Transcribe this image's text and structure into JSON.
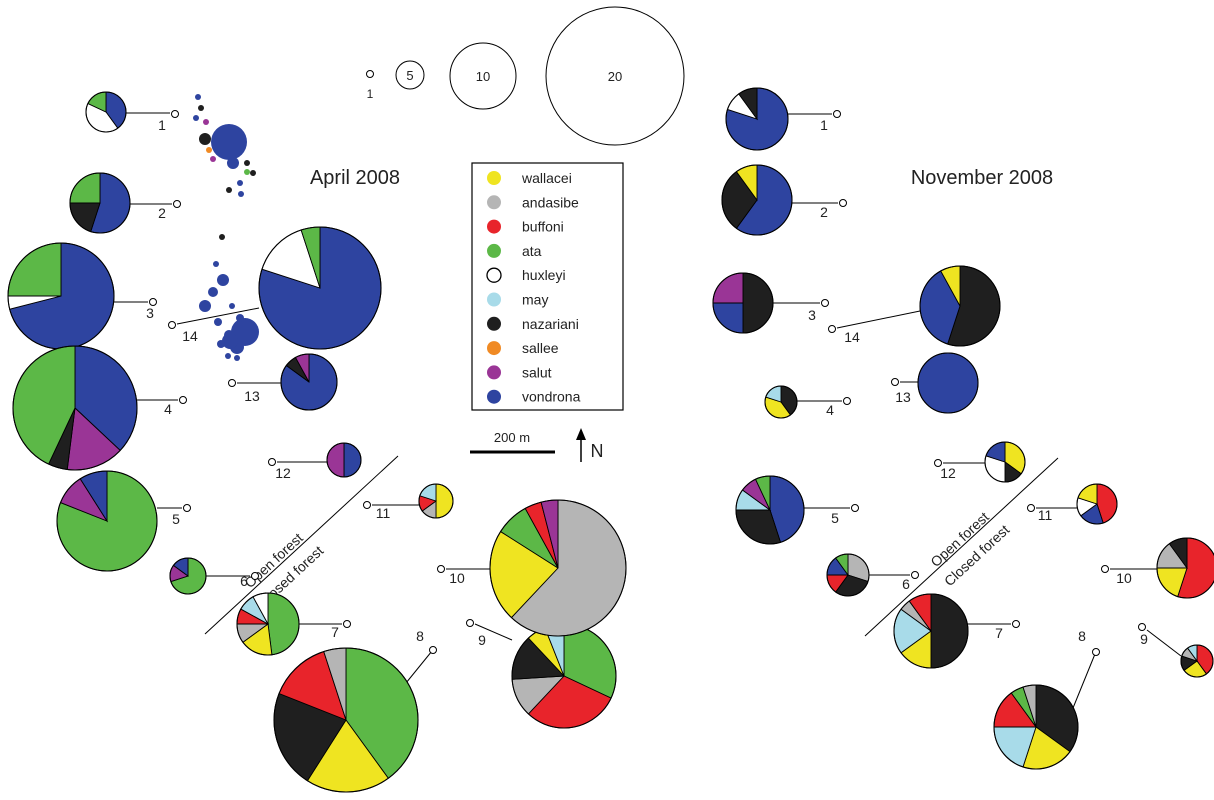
{
  "colors": {
    "wallacei": "#efe421",
    "andasibe": "#b5b5b5",
    "buffoni": "#e8242b",
    "ata": "#5cb847",
    "huxleyi": "#ffffff",
    "may": "#a8dbe9",
    "nazariani": "#1f1f1f",
    "sallee": "#f08a24",
    "salut": "#9a3596",
    "vondrona": "#2e44a0"
  },
  "legend": {
    "items": [
      {
        "key": "wallacei",
        "label": "wallacei"
      },
      {
        "key": "andasibe",
        "label": "andasibe"
      },
      {
        "key": "buffoni",
        "label": "buffoni"
      },
      {
        "key": "ata",
        "label": "ata"
      },
      {
        "key": "huxleyi",
        "label": "huxleyi"
      },
      {
        "key": "may",
        "label": "may"
      },
      {
        "key": "nazariani",
        "label": "nazariani"
      },
      {
        "key": "sallee",
        "label": "sallee"
      },
      {
        "key": "salut",
        "label": "salut"
      },
      {
        "key": "vondrona",
        "label": "vondrona"
      }
    ]
  },
  "size_scale": {
    "values": [
      1,
      5,
      10,
      20
    ]
  },
  "scale_bar": {
    "label": "200 m"
  },
  "north": {
    "label": "N"
  },
  "panels": [
    {
      "title": "April 2008",
      "forest": {
        "open": "Open forest",
        "closed": "Closed forest"
      },
      "sites": [
        {
          "id": "1",
          "comp": [
            {
              "s": "vondrona",
              "v": 40
            },
            {
              "s": "huxleyi",
              "v": 42
            },
            {
              "s": "ata",
              "v": 18
            }
          ]
        },
        {
          "id": "2",
          "comp": [
            {
              "s": "vondrona",
              "v": 55
            },
            {
              "s": "nazariani",
              "v": 20
            },
            {
              "s": "ata",
              "v": 25
            }
          ]
        },
        {
          "id": "3",
          "comp": [
            {
              "s": "vondrona",
              "v": 71
            },
            {
              "s": "huxleyi",
              "v": 4
            },
            {
              "s": "ata",
              "v": 25
            }
          ]
        },
        {
          "id": "4",
          "comp": [
            {
              "s": "vondrona",
              "v": 37
            },
            {
              "s": "salut",
              "v": 15
            },
            {
              "s": "nazariani",
              "v": 5
            },
            {
              "s": "ata",
              "v": 43
            }
          ]
        },
        {
          "id": "5",
          "comp": [
            {
              "s": "ata",
              "v": 81
            },
            {
              "s": "salut",
              "v": 10
            },
            {
              "s": "vondrona",
              "v": 9
            }
          ]
        },
        {
          "id": "6",
          "comp": [
            {
              "s": "ata",
              "v": 70
            },
            {
              "s": "salut",
              "v": 15
            },
            {
              "s": "vondrona",
              "v": 15
            }
          ]
        },
        {
          "id": "7",
          "comp": [
            {
              "s": "ata",
              "v": 48
            },
            {
              "s": "wallacei",
              "v": 17
            },
            {
              "s": "andasibe",
              "v": 10
            },
            {
              "s": "buffoni",
              "v": 8
            },
            {
              "s": "may",
              "v": 9
            },
            {
              "s": "huxleyi",
              "v": 8
            }
          ]
        },
        {
          "id": "8",
          "comp": [
            {
              "s": "ata",
              "v": 40
            },
            {
              "s": "wallacei",
              "v": 19
            },
            {
              "s": "nazariani",
              "v": 22
            },
            {
              "s": "buffoni",
              "v": 14
            },
            {
              "s": "andasibe",
              "v": 5
            }
          ]
        },
        {
          "id": "9",
          "comp": [
            {
              "s": "ata",
              "v": 32
            },
            {
              "s": "buffoni",
              "v": 30
            },
            {
              "s": "andasibe",
              "v": 12
            },
            {
              "s": "nazariani",
              "v": 14
            },
            {
              "s": "wallacei",
              "v": 6
            },
            {
              "s": "may",
              "v": 6
            }
          ]
        },
        {
          "id": "10",
          "comp": [
            {
              "s": "andasibe",
              "v": 62
            },
            {
              "s": "wallacei",
              "v": 22
            },
            {
              "s": "ata",
              "v": 8
            },
            {
              "s": "buffoni",
              "v": 4
            },
            {
              "s": "salut",
              "v": 4
            }
          ]
        },
        {
          "id": "11",
          "comp": [
            {
              "s": "wallacei",
              "v": 50
            },
            {
              "s": "andasibe",
              "v": 15
            },
            {
              "s": "buffoni",
              "v": 15
            },
            {
              "s": "may",
              "v": 20
            }
          ]
        },
        {
          "id": "12",
          "comp": [
            {
              "s": "vondrona",
              "v": 50
            },
            {
              "s": "salut",
              "v": 50
            }
          ]
        },
        {
          "id": "13",
          "comp": [
            {
              "s": "vondrona",
              "v": 85
            },
            {
              "s": "nazariani",
              "v": 7
            },
            {
              "s": "salut",
              "v": 8
            }
          ]
        },
        {
          "id": "14",
          "comp": [
            {
              "s": "vondrona",
              "v": 80
            },
            {
              "s": "huxleyi",
              "v": 15
            },
            {
              "s": "ata",
              "v": 5
            }
          ]
        }
      ]
    },
    {
      "title": "November 2008",
      "forest": {
        "open": "Open forest",
        "closed": "Closed forest"
      },
      "sites": [
        {
          "id": "1",
          "comp": [
            {
              "s": "vondrona",
              "v": 80
            },
            {
              "s": "huxleyi",
              "v": 10
            },
            {
              "s": "nazariani",
              "v": 10
            }
          ]
        },
        {
          "id": "2",
          "comp": [
            {
              "s": "vondrona",
              "v": 60
            },
            {
              "s": "nazariani",
              "v": 30
            },
            {
              "s": "wallacei",
              "v": 10
            }
          ]
        },
        {
          "id": "3",
          "comp": [
            {
              "s": "nazariani",
              "v": 50
            },
            {
              "s": "vondrona",
              "v": 25
            },
            {
              "s": "salut",
              "v": 25
            }
          ]
        },
        {
          "id": "4",
          "comp": [
            {
              "s": "nazariani",
              "v": 40
            },
            {
              "s": "wallacei",
              "v": 40
            },
            {
              "s": "may",
              "v": 20
            }
          ]
        },
        {
          "id": "5",
          "comp": [
            {
              "s": "vondrona",
              "v": 45
            },
            {
              "s": "nazariani",
              "v": 30
            },
            {
              "s": "may",
              "v": 10
            },
            {
              "s": "salut",
              "v": 8
            },
            {
              "s": "ata",
              "v": 7
            }
          ]
        },
        {
          "id": "6",
          "comp": [
            {
              "s": "andasibe",
              "v": 30
            },
            {
              "s": "nazariani",
              "v": 30
            },
            {
              "s": "buffoni",
              "v": 15
            },
            {
              "s": "vondrona",
              "v": 15
            },
            {
              "s": "ata",
              "v": 10
            }
          ]
        },
        {
          "id": "7",
          "comp": [
            {
              "s": "nazariani",
              "v": 50
            },
            {
              "s": "wallacei",
              "v": 15
            },
            {
              "s": "may",
              "v": 20
            },
            {
              "s": "andasibe",
              "v": 5
            },
            {
              "s": "buffoni",
              "v": 10
            }
          ]
        },
        {
          "id": "8",
          "comp": [
            {
              "s": "nazariani",
              "v": 35
            },
            {
              "s": "wallacei",
              "v": 20
            },
            {
              "s": "may",
              "v": 20
            },
            {
              "s": "buffoni",
              "v": 15
            },
            {
              "s": "ata",
              "v": 5
            },
            {
              "s": "andasibe",
              "v": 5
            }
          ]
        },
        {
          "id": "9",
          "comp": [
            {
              "s": "buffoni",
              "v": 40
            },
            {
              "s": "wallacei",
              "v": 25
            },
            {
              "s": "nazariani",
              "v": 15
            },
            {
              "s": "andasibe",
              "v": 10
            },
            {
              "s": "may",
              "v": 10
            }
          ]
        },
        {
          "id": "10",
          "comp": [
            {
              "s": "buffoni",
              "v": 55
            },
            {
              "s": "wallacei",
              "v": 20
            },
            {
              "s": "andasibe",
              "v": 15
            },
            {
              "s": "nazariani",
              "v": 10
            }
          ]
        },
        {
          "id": "11",
          "comp": [
            {
              "s": "buffoni",
              "v": 45
            },
            {
              "s": "vondrona",
              "v": 20
            },
            {
              "s": "huxleyi",
              "v": 15
            },
            {
              "s": "wallacei",
              "v": 20
            }
          ]
        },
        {
          "id": "12",
          "comp": [
            {
              "s": "wallacei",
              "v": 35
            },
            {
              "s": "nazariani",
              "v": 15
            },
            {
              "s": "huxleyi",
              "v": 30
            },
            {
              "s": "vondrona",
              "v": 20
            }
          ]
        },
        {
          "id": "13",
          "comp": [
            {
              "s": "vondrona",
              "v": 100
            }
          ]
        },
        {
          "id": "14",
          "comp": [
            {
              "s": "nazariani",
              "v": 55
            },
            {
              "s": "vondrona",
              "v": 37
            },
            {
              "s": "wallacei",
              "v": 8
            }
          ]
        }
      ]
    }
  ],
  "scatter_dots": {
    "comment_free": true,
    "items": [
      {
        "s": "vondrona"
      },
      {
        "s": "nazariani"
      },
      {
        "s": "vondrona"
      },
      {
        "s": "salut"
      },
      {
        "s": "nazariani"
      },
      {
        "s": "vondrona"
      },
      {
        "s": "sallee"
      },
      {
        "s": "salut"
      },
      {
        "s": "vondrona"
      },
      {
        "s": "nazariani"
      },
      {
        "s": "ata"
      },
      {
        "s": "nazariani"
      },
      {
        "s": "vondrona"
      },
      {
        "s": "nazariani"
      },
      {
        "s": "vondrona"
      },
      {
        "s": "nazariani"
      },
      {
        "s": "vondrona"
      },
      {
        "s": "vondrona"
      },
      {
        "s": "vondrona"
      },
      {
        "s": "vondrona"
      },
      {
        "s": "vondrona"
      },
      {
        "s": "vondrona"
      },
      {
        "s": "vondrona"
      },
      {
        "s": "vondrona"
      },
      {
        "s": "vondrona"
      },
      {
        "s": "vondrona"
      },
      {
        "s": "vondrona"
      },
      {
        "s": "vondrona"
      },
      {
        "s": "vondrona"
      },
      {
        "s": "vondrona"
      }
    ]
  }
}
